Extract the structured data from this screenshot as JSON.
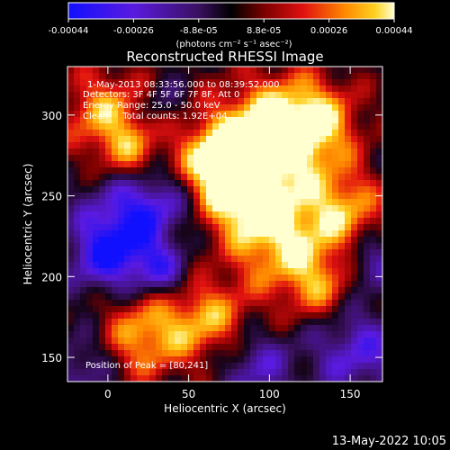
{
  "chart_data": {
    "type": "heatmap",
    "title": "Reconstructed RHESSI Image",
    "xlabel": "Heliocentric X (arcsec)",
    "ylabel": "Heliocentric Y (arcsec)",
    "xlim": [
      -25,
      170
    ],
    "ylim": [
      135,
      330
    ],
    "xticks": [
      0,
      50,
      100,
      150
    ],
    "yticks": [
      150,
      200,
      250,
      300
    ],
    "colorbar": {
      "min": -0.00044,
      "max": 0.00044,
      "ticks": [
        "-0.00044",
        "-0.00026",
        "-8.8e-05",
        "8.8e-05",
        "0.00026",
        "0.00044"
      ],
      "units": "(photons cm⁻² s⁻¹ asec⁻²)"
    },
    "annotations": [
      "1-May-2013 08:33:56.000 to 08:39:52.000",
      "Detectors: 3F 4F 5F 6F 7F 8F, Att 0",
      "Energy Range: 25.0 - 50.0 keV",
      "Clean     Total counts: 1.92E+04"
    ],
    "peak_label": "Position of Peak = [80,241]",
    "peak": [
      80,
      241
    ],
    "peak_value": 0.00044
  },
  "footer": {
    "timestamp": "13-May-2022 10:05"
  }
}
